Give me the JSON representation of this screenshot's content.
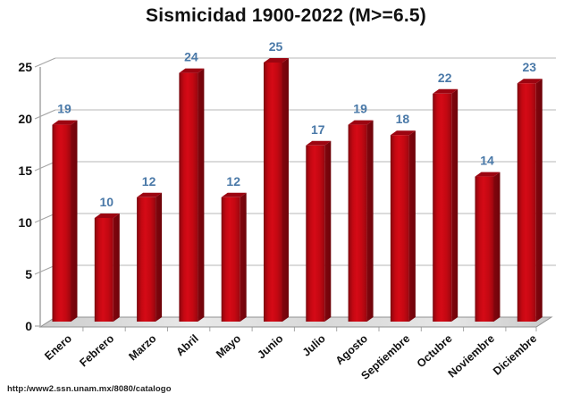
{
  "title": "Sismicidad 1900-2022 (M>=6.5)",
  "footer": {
    "source_url": "http:/www2.ssn.unam.mx/8080/catalogo"
  },
  "chart_data": {
    "type": "bar",
    "style": "3d-column",
    "title": "Sismicidad 1900-2022 (M>=6.5)",
    "categories": [
      "Enero",
      "Febrero",
      "Marzo",
      "Abril",
      "Mayo",
      "Junio",
      "Julio",
      "Agosto",
      "Septiembre",
      "Octubre",
      "Noviembre",
      "Diciembre"
    ],
    "values": [
      19,
      10,
      12,
      24,
      12,
      25,
      17,
      19,
      18,
      22,
      14,
      23
    ],
    "xlabel": "",
    "ylabel": "",
    "yticks": [
      0,
      5,
      10,
      15,
      20,
      25
    ],
    "ylim": [
      0,
      25
    ],
    "grid": true,
    "legend": false,
    "value_labels_shown": true,
    "colors": {
      "bar_front_bright": "#D50A16",
      "bar_front_mid": "#C40812",
      "bar_front_dark": "#6E040A",
      "bar_top": "#9C0511",
      "bar_side": "#82050D",
      "value_label": "#4A79A8",
      "axis": "#A6A6A6",
      "gridline": "#B7B7B7",
      "floor_fill": "#D8D8D8",
      "floor_edge": "#909090",
      "text": "#111111"
    }
  }
}
